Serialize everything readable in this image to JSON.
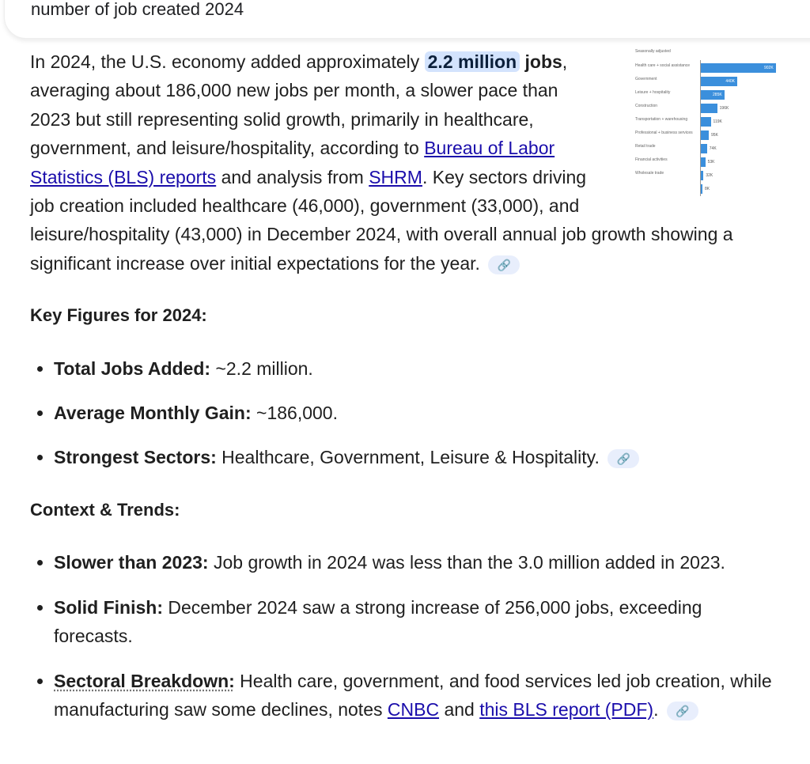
{
  "search": {
    "query": "number of job created 2024"
  },
  "intro": {
    "t1": "In 2024, the U.S. economy added approximately ",
    "highlight": "2.2 million",
    "t2": " jobs",
    "t3": ", averaging about 186,000 new jobs per month, a slower pace than 2023 but still representing solid growth, primarily in healthcare, government, and leisure/hospitality, according to ",
    "link1": "Bureau of Labor Statistics (BLS) reports",
    "t4": " and analysis from ",
    "link2": "SHRM",
    "t5": ". Key sectors driving job creation included healthcare (46,000), government (33,000), and leisure/hospitality (43,000) in December 2024, with overall annual job growth showing a significant increase over initial expectations for the year."
  },
  "chart_data": {
    "type": "bar",
    "subtitle": "Seasonally adjusted",
    "categories": [
      "Health care + social assistance",
      "Government",
      "Leisure + hospitality",
      "Construction",
      "Transportation + warehousing",
      "Professional + business services",
      "Retail trade",
      "Financial activities",
      "Wholesale trade",
      ""
    ],
    "values": [
      902,
      440,
      285,
      196,
      119,
      95,
      74,
      53,
      32,
      8
    ],
    "value_labels": [
      "902K",
      "440K",
      "285K",
      "196K",
      "119K",
      "95K",
      "74K",
      "53K",
      "32K",
      "8K"
    ],
    "color": "#3b8fdc"
  },
  "key_figures": {
    "heading": "Key Figures for 2024:",
    "items": [
      {
        "label": "Total Jobs Added:",
        "text": " ~2.2 million."
      },
      {
        "label": "Average Monthly Gain:",
        "text": " ~186,000."
      },
      {
        "label": "Strongest Sectors:",
        "text": " Healthcare, Government, Leisure & Hospitality."
      }
    ]
  },
  "context": {
    "heading": "Context & Trends:",
    "items": [
      {
        "label": "Slower than 2023:",
        "text": " Job growth in 2024 was less than the 3.0 million added in 2023."
      },
      {
        "label": "Solid Finish:",
        "text": " December 2024 saw a strong increase of 256,000 jobs, exceeding forecasts."
      },
      {
        "label": "Sectoral Breakdown:",
        "text": " Health care, government, and food services led job creation, while manufacturing saw some declines, notes ",
        "link1": "CNBC",
        "mid": " and ",
        "link2": "this BLS report (PDF)",
        "end": "."
      }
    ]
  },
  "icons": {
    "citation": "link-icon"
  }
}
